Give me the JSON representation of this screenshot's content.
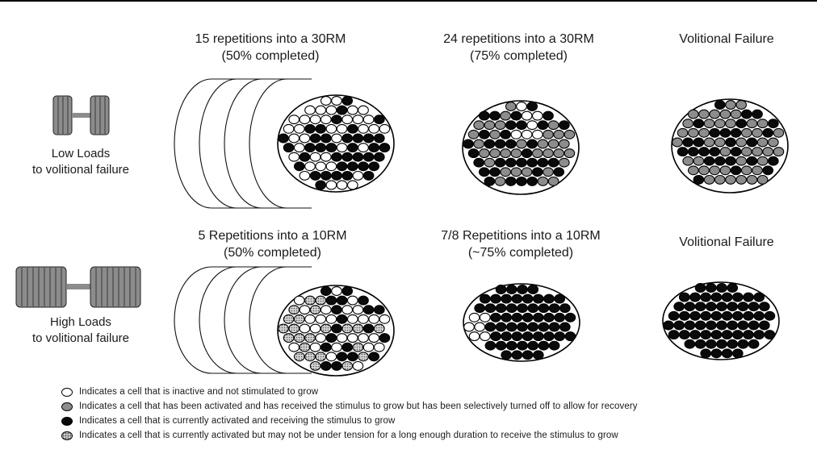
{
  "top_row": {
    "col1_heading": "15 repetitions into a 30RM\n(50% completed)",
    "col2_heading": "24 repetitions into a 30RM\n(75% completed)",
    "col3_heading": "Volitional Failure",
    "side_label": "Low Loads\nto volitional failure"
  },
  "bottom_row": {
    "col1_heading": "5 Repetitions into a 10RM\n(50% completed)",
    "col2_heading": "7/8 Repetitions into a 10RM\n(~75% completed)",
    "col3_heading": "Volitional Failure",
    "side_label": "High Loads\nto volitional failure"
  },
  "legend": [
    {
      "fill": "#ffffff",
      "text": "Indicates a cell that is inactive and not stimulated to grow"
    },
    {
      "fill": "#8c8c8c",
      "text": "Indicates a cell that has been activated and has received the stimulus to grow but has been selectively turned off to allow for recovery"
    },
    {
      "fill": "#0a0a0a",
      "text": "Indicates a cell that is currently activated and receiving the stimulus to grow"
    },
    {
      "fill": "dotted",
      "text": "Indicates a cell that is currently activated but may not be under tension for a long enough duration to receive the stimulus to grow"
    }
  ],
  "colors": {
    "white_cell": "#ffffff",
    "gray_cell": "#8c8c8c",
    "black_cell": "#0a0a0a",
    "dotted_cell": "#b4b4b4"
  }
}
